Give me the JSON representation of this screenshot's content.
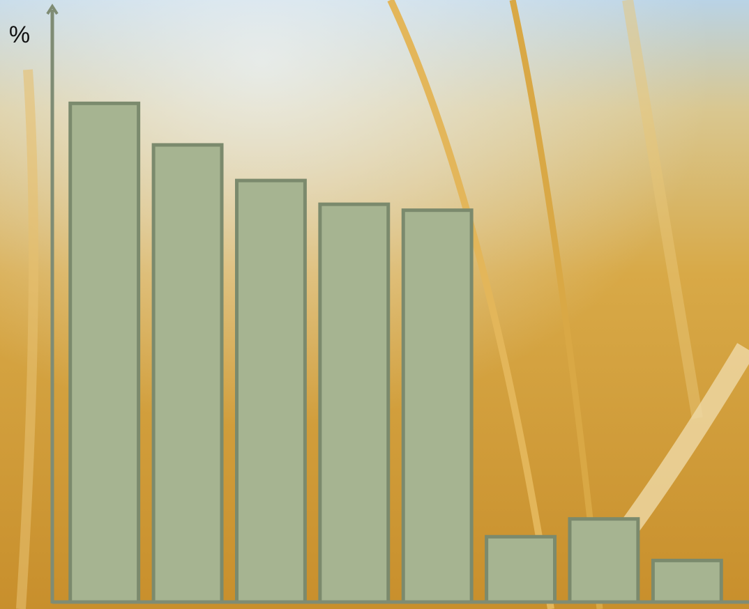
{
  "chart_data": {
    "type": "bar",
    "y_label": "%",
    "categories": [
      null,
      null,
      null,
      null,
      null,
      null,
      null,
      null
    ],
    "values": [
      84,
      77,
      71,
      67,
      66,
      11,
      14,
      7
    ],
    "color": "#a6b491",
    "edge_color": "#7b8a6d",
    "ylim": [
      0,
      100
    ]
  }
}
